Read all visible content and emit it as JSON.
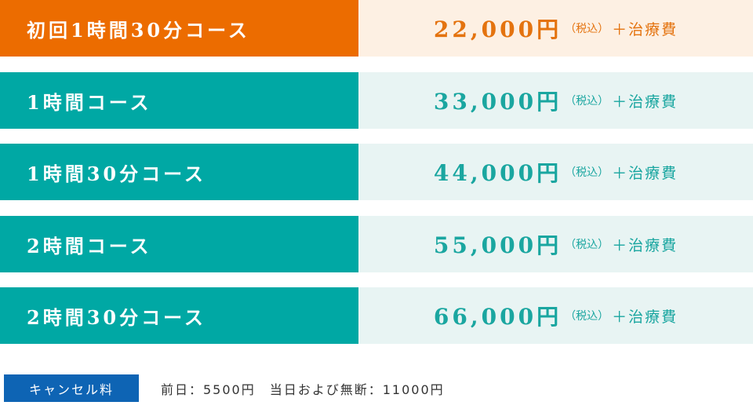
{
  "table": {
    "rows": [
      {
        "name": "初回1時間30分コース",
        "price": "22,000円",
        "tax": "（税込）",
        "extra": "＋治療費"
      },
      {
        "name": "1時間コース",
        "price": "33,000円",
        "tax": "（税込）",
        "extra": "＋治療費"
      },
      {
        "name": "1時間30分コース",
        "price": "44,000円",
        "tax": "（税込）",
        "extra": "＋治療費"
      },
      {
        "name": "2時間コース",
        "price": "55,000円",
        "tax": "（税込）",
        "extra": "＋治療費"
      },
      {
        "name": "2時間30分コース",
        "price": "66,000円",
        "tax": "（税込）",
        "extra": "＋治療費"
      }
    ]
  },
  "cancel": {
    "label": "キャンセル料",
    "text": "前日：5500円　当日および無断：11000円"
  }
}
